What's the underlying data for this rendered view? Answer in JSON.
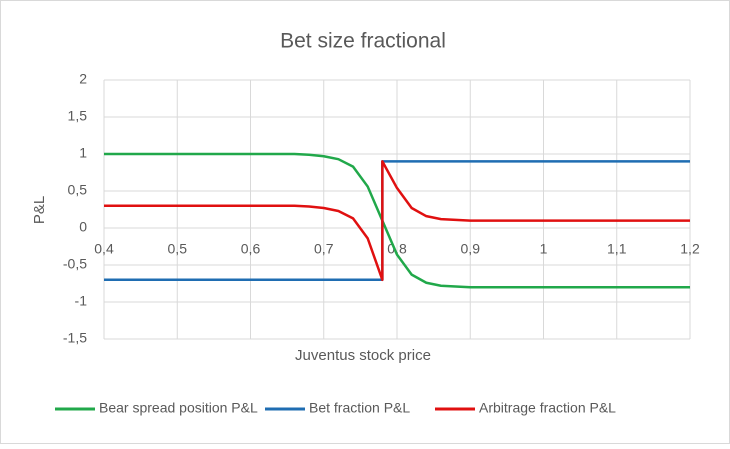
{
  "chart_data": {
    "type": "line",
    "title": "Bet size fractional",
    "x_label": "Juventus stock price",
    "y_label": "P&L",
    "x": [
      0.4,
      0.5,
      0.6,
      0.66,
      0.68,
      0.7,
      0.72,
      0.74,
      0.76,
      0.78,
      0.78,
      0.8,
      0.82,
      0.84,
      0.86,
      0.88,
      0.9,
      0.95,
      1.0,
      1.1,
      1.2
    ],
    "series": [
      {
        "name": "Bear spread position P&L",
        "color": "#21a84a",
        "values": [
          1,
          1,
          1,
          1,
          0.99,
          0.97,
          0.93,
          0.83,
          0.56,
          0.1,
          0.1,
          -0.36,
          -0.63,
          -0.74,
          -0.78,
          -0.79,
          -0.8,
          -0.8,
          -0.8,
          -0.8,
          -0.8
        ]
      },
      {
        "name": "Bet fraction P&L",
        "color": "#1f6db2",
        "values": [
          -0.7,
          -0.7,
          -0.7,
          -0.7,
          -0.7,
          -0.7,
          -0.7,
          -0.7,
          -0.7,
          -0.7,
          0.9,
          0.9,
          0.9,
          0.9,
          0.9,
          0.9,
          0.9,
          0.9,
          0.9,
          0.9,
          0.9
        ]
      },
      {
        "name": "Arbitrage fraction P&L",
        "color": "#e01010",
        "values": [
          0.3,
          0.3,
          0.3,
          0.3,
          0.29,
          0.27,
          0.23,
          0.13,
          -0.14,
          -0.7,
          0.9,
          0.54,
          0.27,
          0.16,
          0.12,
          0.11,
          0.1,
          0.1,
          0.1,
          0.1,
          0.1
        ]
      }
    ],
    "xlim": [
      0.4,
      1.2
    ],
    "xticks": [
      {
        "value": 0.4,
        "label": "0,4"
      },
      {
        "value": 0.5,
        "label": "0,5"
      },
      {
        "value": 0.6,
        "label": "0,6"
      },
      {
        "value": 0.7,
        "label": "0,7"
      },
      {
        "value": 0.8,
        "label": "0,8"
      },
      {
        "value": 0.9,
        "label": "0,9"
      },
      1,
      {
        "value": 1.1,
        "label": "1,1"
      },
      {
        "value": 1.2,
        "label": "1,2"
      }
    ],
    "ylim": [
      -1.5,
      2
    ],
    "yticks": [
      2,
      {
        "value": 1.5,
        "label": "1,5"
      },
      1,
      {
        "value": 0.5,
        "label": "0,5"
      },
      0,
      {
        "value": -0.5,
        "label": "-0,5"
      },
      -1,
      {
        "value": -1.5,
        "label": "-1,5"
      }
    ],
    "grid": true,
    "legend": "bottom"
  }
}
